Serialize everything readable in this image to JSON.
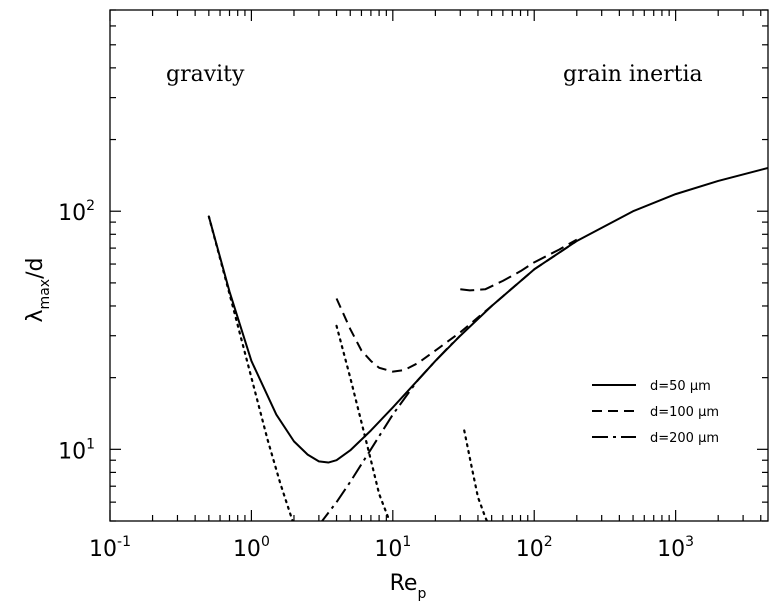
{
  "chart_data": {
    "type": "line",
    "xlabel": "Re",
    "xlabel_sub": "p",
    "ylabel": "λ",
    "ylabel_sub": "max",
    "ylabel_suffix": "/d",
    "xscale": "log",
    "yscale": "log",
    "xlim": [
      0.1,
      4500
    ],
    "ylim": [
      5,
      700
    ],
    "x_ticks": [
      {
        "value": 0.1,
        "base": "10",
        "exp": "-1"
      },
      {
        "value": 1,
        "base": "10",
        "exp": "0"
      },
      {
        "value": 10,
        "base": "10",
        "exp": "1"
      },
      {
        "value": 100,
        "base": "10",
        "exp": "2"
      },
      {
        "value": 1000,
        "base": "10",
        "exp": "3"
      }
    ],
    "y_ticks": [
      {
        "value": 10,
        "base": "10",
        "exp": "1"
      },
      {
        "value": 100,
        "base": "10",
        "exp": "2"
      }
    ],
    "annotations": [
      {
        "text": "gravity",
        "x": 0.13,
        "y": 380
      },
      {
        "text": "grain inertia",
        "x": 280,
        "y": 380
      }
    ],
    "legend": {
      "position": "lower-right",
      "entries": [
        {
          "label": "d=50 μm",
          "dash": "solid"
        },
        {
          "label": "d=100 μm",
          "dash": "dashed"
        },
        {
          "label": "d=200 μm",
          "dash": "dashdot"
        }
      ]
    },
    "series": [
      {
        "name": "d=50 μm",
        "dash": "solid",
        "x": [
          0.5,
          0.7,
          1.0,
          1.5,
          2.0,
          2.5,
          3.0,
          3.5,
          4.0,
          5.0,
          7.0,
          10,
          15,
          20,
          30,
          50,
          100,
          200,
          500,
          1000,
          2000,
          4500
        ],
        "y": [
          95,
          46,
          23.5,
          14,
          10.8,
          9.5,
          8.9,
          8.8,
          9.0,
          9.9,
          12,
          15,
          19.5,
          23.5,
          30,
          40,
          57,
          75,
          100,
          118,
          134,
          152
        ]
      },
      {
        "name": "d=100 μm",
        "dash": "dashed",
        "x": [
          4.0,
          5.0,
          6.0,
          7.0,
          8.0,
          10,
          12,
          15,
          20,
          30,
          50,
          100,
          200
        ],
        "y": [
          43,
          32,
          26,
          23.5,
          22,
          21.2,
          21.5,
          23,
          26,
          31,
          40,
          57,
          75
        ]
      },
      {
        "name": "d=200 μm",
        "dash": "dashdot",
        "x": [
          3.0,
          4.0,
          5.0,
          7.0,
          10,
          15,
          20,
          25,
          30
        ],
        "y": [
          4.8,
          6.0,
          7.3,
          10,
          14,
          19.5,
          23.5,
          27,
          30
        ]
      },
      {
        "name": "d=200 μm",
        "dash": "longdash",
        "x": [
          30,
          35,
          45,
          60,
          80,
          100,
          150,
          200
        ],
        "y": [
          47,
          46.5,
          47,
          51,
          56,
          61,
          69,
          76
        ]
      },
      {
        "name": "",
        "dash": "dotted",
        "x": [
          0.5,
          0.7,
          1.0,
          1.3,
          1.6,
          2.0
        ],
        "y": [
          95,
          45,
          20,
          11,
          7.2,
          4.8
        ]
      },
      {
        "name": "",
        "dash": "dotted",
        "x": [
          4.0,
          5.0,
          6.0,
          7.0,
          8.0,
          10
        ],
        "y": [
          33,
          20,
          13,
          9,
          6.5,
          4.6
        ]
      },
      {
        "name": "",
        "dash": "dotted",
        "x": [
          32,
          36,
          40,
          45,
          50
        ],
        "y": [
          12,
          8.5,
          6.3,
          5.2,
          4.5
        ]
      }
    ]
  }
}
